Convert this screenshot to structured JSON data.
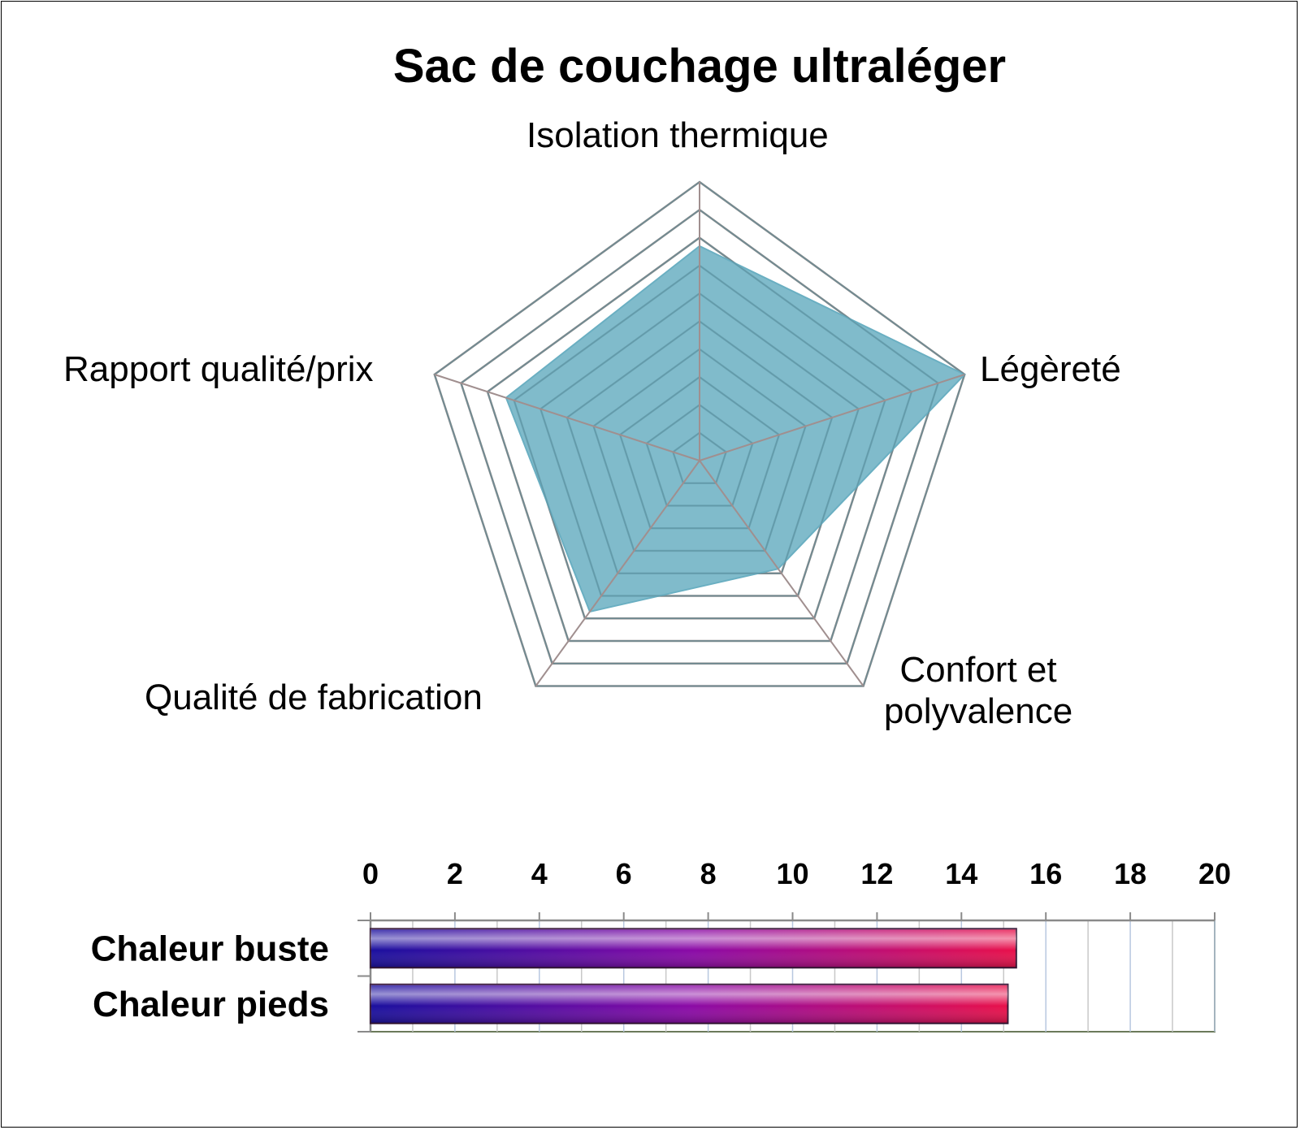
{
  "chart_data": [
    {
      "type": "radar",
      "title": "Sac de couchage ultraléger",
      "axes": [
        "Isolation thermique",
        "Légèreté",
        "Confort et polyvalence",
        "Qualité de fabrication",
        "Rapport qualité/prix"
      ],
      "range": [
        0,
        10
      ],
      "series": [
        {
          "values": [
            7.7,
            10,
            4.8,
            6.7,
            7.3
          ]
        }
      ],
      "colors": {
        "fill": "#6aafc2",
        "grid": "#8a8a8a",
        "spoke": "#a08f8f"
      }
    },
    {
      "type": "bar",
      "orientation": "horizontal",
      "categories": [
        "Chaleur buste",
        "Chaleur pieds"
      ],
      "values": [
        15.3,
        15.1
      ],
      "xlim": [
        0,
        20
      ],
      "xticks": [
        "0",
        "2",
        "4",
        "6",
        "8",
        "10",
        "12",
        "14",
        "16",
        "18",
        "20"
      ],
      "xaxis_position": "top",
      "colors": {
        "gradient_start": "#1a0f9e",
        "gradient_mid": "#8a0aa6",
        "gradient_end": "#e8104a"
      }
    }
  ]
}
